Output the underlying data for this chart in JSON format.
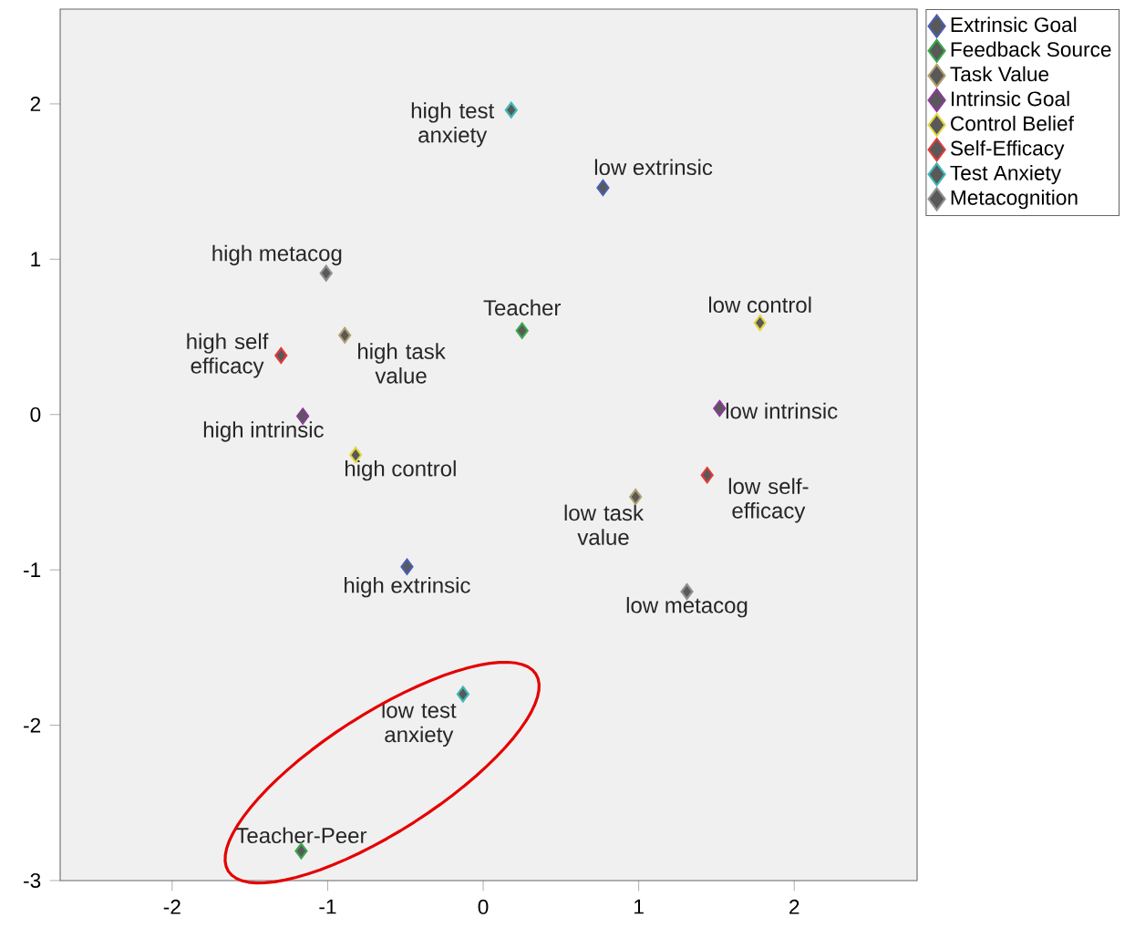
{
  "chart_data": {
    "type": "scatter",
    "marker": "diamond",
    "legend": "right",
    "grid": false,
    "xlim": [
      -2.72,
      2.79
    ],
    "ylim": [
      -3,
      2.61
    ],
    "xticks": [
      -2,
      -1,
      0,
      1,
      2
    ],
    "yticks": [
      -3,
      -2,
      -1,
      0,
      1,
      2
    ],
    "series": [
      {
        "name": "Extrinsic Goal",
        "color": "#4a5fb0",
        "x": [
          -0.49,
          0.77
        ],
        "values": [
          -0.98,
          1.46
        ]
      },
      {
        "name": "Feedback Source",
        "color": "#3aa84a",
        "x": [
          0.25,
          -1.17
        ],
        "values": [
          0.54,
          -2.81
        ]
      },
      {
        "name": "Task Value",
        "color": "#b0a070",
        "x": [
          -0.89,
          0.98
        ],
        "values": [
          0.51,
          -0.53
        ]
      },
      {
        "name": "Intrinsic Goal",
        "color": "#8a3a9a",
        "x": [
          -1.16,
          1.52
        ],
        "values": [
          -0.01,
          0.04
        ]
      },
      {
        "name": "Control Belief",
        "color": "#e0d840",
        "x": [
          -0.82,
          1.78
        ],
        "values": [
          -0.26,
          0.59
        ]
      },
      {
        "name": "Self-Efficacy",
        "color": "#e03a3a",
        "x": [
          -1.3,
          1.44
        ],
        "values": [
          0.38,
          -0.39
        ]
      },
      {
        "name": "Test Anxiety",
        "color": "#40b8b8",
        "x": [
          0.18,
          -0.13
        ],
        "values": [
          1.96,
          -1.8
        ]
      },
      {
        "name": "Metacognition",
        "color": "#909090",
        "x": [
          -1.01,
          1.31
        ],
        "values": [
          0.91,
          -1.14
        ]
      }
    ],
    "annotations": [
      {
        "text": "high extrinsic",
        "x": -0.49,
        "y": -0.98
      },
      {
        "text": "low extrinsic",
        "x": 0.77,
        "y": 1.46
      },
      {
        "text": "Teacher",
        "x": 0.25,
        "y": 0.54
      },
      {
        "text": "Teacher-Peer",
        "x": -1.17,
        "y": -2.81
      },
      {
        "text": "high task value",
        "x": -0.89,
        "y": 0.51
      },
      {
        "text": "low task value",
        "x": 0.98,
        "y": -0.53
      },
      {
        "text": "high intrinsic",
        "x": -1.16,
        "y": -0.01
      },
      {
        "text": "low intrinsic",
        "x": 1.52,
        "y": 0.04
      },
      {
        "text": "high control",
        "x": -0.82,
        "y": -0.26
      },
      {
        "text": "low control",
        "x": 1.78,
        "y": 0.59
      },
      {
        "text": "high self efficacy",
        "x": -1.3,
        "y": 0.38
      },
      {
        "text": "low self-efficacy",
        "x": 1.44,
        "y": -0.39
      },
      {
        "text": "high test anxiety",
        "x": 0.18,
        "y": 1.96
      },
      {
        "text": "low test anxiety",
        "x": -0.13,
        "y": -1.8
      },
      {
        "text": "high metacog",
        "x": -1.01,
        "y": 0.91
      },
      {
        "text": "low metacog",
        "x": 1.31,
        "y": -1.14
      }
    ]
  }
}
